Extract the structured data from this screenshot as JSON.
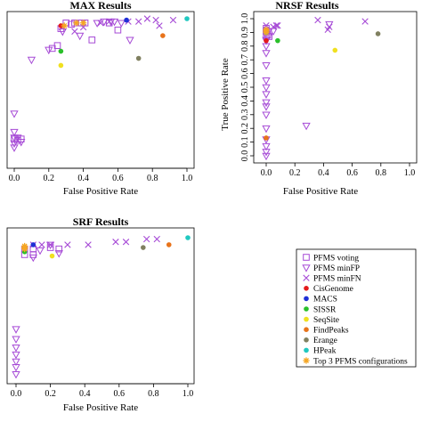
{
  "marker_styles": {
    "PFMS voting": {
      "shape": "square",
      "color": "#a64ad6"
    },
    "PFMS minFP": {
      "shape": "triangle-down",
      "color": "#a64ad6"
    },
    "PFMS minFN": {
      "shape": "x",
      "color": "#a64ad6"
    },
    "CisGenome": {
      "shape": "dot",
      "color": "#e41a1c"
    },
    "MACS": {
      "shape": "dot",
      "color": "#1f2fd6"
    },
    "SISSR": {
      "shape": "dot",
      "color": "#2ac02a"
    },
    "SeqSite": {
      "shape": "dot",
      "color": "#f0e020"
    },
    "FindPeaks": {
      "shape": "dot",
      "color": "#e8731a"
    },
    "Erange": {
      "shape": "dot",
      "color": "#808060"
    },
    "HPeak": {
      "shape": "dot",
      "color": "#20c8c0"
    },
    "Top 3 PFMS configurations": {
      "shape": "asterisk",
      "color": "#f5a623"
    }
  },
  "legend": {
    "items": [
      "PFMS voting",
      "PFMS minFP",
      "PFMS minFN",
      "CisGenome",
      "MACS",
      "SISSR",
      "SeqSite",
      "FindPeaks",
      "Erange",
      "HPeak",
      "Top 3 PFMS configurations"
    ]
  },
  "chart_data": [
    {
      "type": "scatter",
      "title": "MAX Results",
      "xlabel": "False Positive Rate",
      "ylabel": "",
      "xlim": [
        0,
        1
      ],
      "ylim": [
        0,
        1
      ],
      "xticks": [
        "0.0",
        "0.2",
        "0.4",
        "0.6",
        "0.8",
        "1.0"
      ],
      "yticks": [],
      "series": [
        {
          "name": "PFMS voting",
          "points": [
            [
              0.0,
              0.15
            ],
            [
              0.02,
              0.14
            ],
            [
              0.04,
              0.15
            ],
            [
              0.22,
              0.79
            ],
            [
              0.25,
              0.81
            ],
            [
              0.27,
              0.93
            ],
            [
              0.3,
              0.97
            ],
            [
              0.33,
              0.96
            ],
            [
              0.35,
              0.97
            ],
            [
              0.39,
              0.97
            ],
            [
              0.41,
              0.97
            ],
            [
              0.45,
              0.85
            ],
            [
              0.55,
              0.97
            ],
            [
              0.6,
              0.92
            ]
          ]
        },
        {
          "name": "PFMS minFP",
          "points": [
            [
              0.0,
              0.33
            ],
            [
              0.0,
              0.2
            ],
            [
              0.0,
              0.16
            ],
            [
              0.0,
              0.12
            ],
            [
              0.0,
              0.09
            ],
            [
              0.02,
              0.16
            ],
            [
              0.04,
              0.13
            ],
            [
              0.1,
              0.71
            ],
            [
              0.2,
              0.78
            ],
            [
              0.28,
              0.91
            ],
            [
              0.38,
              0.88
            ],
            [
              0.48,
              0.97
            ],
            [
              0.52,
              0.98
            ],
            [
              0.56,
              0.98
            ],
            [
              0.58,
              0.98
            ],
            [
              0.62,
              0.97
            ],
            [
              0.67,
              0.85
            ]
          ]
        },
        {
          "name": "PFMS minFN",
          "points": [
            [
              0.28,
              0.94
            ],
            [
              0.35,
              0.91
            ],
            [
              0.4,
              0.94
            ],
            [
              0.5,
              0.97
            ],
            [
              0.55,
              0.98
            ],
            [
              0.66,
              0.98
            ],
            [
              0.72,
              0.98
            ],
            [
              0.77,
              1.0
            ],
            [
              0.82,
              0.99
            ],
            [
              0.84,
              0.95
            ],
            [
              0.92,
              0.99
            ]
          ]
        },
        {
          "name": "CisGenome",
          "points": [
            [
              0.27,
              0.95
            ]
          ]
        },
        {
          "name": "MACS",
          "points": [
            [
              0.65,
              0.99
            ]
          ]
        },
        {
          "name": "SISSR",
          "points": [
            [
              0.27,
              0.77
            ]
          ]
        },
        {
          "name": "SeqSite",
          "points": [
            [
              0.27,
              0.67
            ]
          ]
        },
        {
          "name": "FindPeaks",
          "points": [
            [
              0.86,
              0.88
            ]
          ]
        },
        {
          "name": "Erange",
          "points": [
            [
              0.72,
              0.72
            ]
          ]
        },
        {
          "name": "HPeak",
          "points": [
            [
              1.0,
              1.0
            ]
          ]
        },
        {
          "name": "Top 3 PFMS configurations",
          "points": [
            [
              0.29,
              0.95
            ],
            [
              0.36,
              0.97
            ],
            [
              0.4,
              0.97
            ]
          ]
        }
      ]
    },
    {
      "type": "scatter",
      "title": "NRSF Results",
      "xlabel": "False Positive Rate",
      "ylabel": "True Positive Rate",
      "xlim": [
        0,
        1
      ],
      "ylim": [
        0,
        1
      ],
      "xticks": [
        "0.0",
        "0.2",
        "0.4",
        "0.6",
        "0.8",
        "1.0"
      ],
      "yticks": [
        "0.0",
        "0.1",
        "0.2",
        "0.3",
        "0.4",
        "0.5",
        "0.6",
        "0.7",
        "0.8",
        "0.9",
        "1.0"
      ],
      "series": [
        {
          "name": "PFMS voting",
          "points": [
            [
              0.0,
              0.93
            ],
            [
              0.0,
              0.91
            ],
            [
              0.0,
              0.9
            ],
            [
              0.01,
              0.88
            ],
            [
              0.02,
              0.87
            ]
          ]
        },
        {
          "name": "PFMS minFP",
          "points": [
            [
              0.0,
              0.0
            ],
            [
              0.0,
              0.03
            ],
            [
              0.0,
              0.07
            ],
            [
              0.0,
              0.12
            ],
            [
              0.0,
              0.2
            ],
            [
              0.0,
              0.3
            ],
            [
              0.0,
              0.36
            ],
            [
              0.0,
              0.39
            ],
            [
              0.0,
              0.45
            ],
            [
              0.0,
              0.5
            ],
            [
              0.0,
              0.55
            ],
            [
              0.0,
              0.66
            ],
            [
              0.0,
              0.75
            ],
            [
              0.0,
              0.8
            ],
            [
              0.0,
              0.84
            ],
            [
              0.0,
              0.85
            ],
            [
              0.28,
              0.22
            ],
            [
              0.44,
              0.96
            ],
            [
              0.05,
              0.91
            ]
          ]
        },
        {
          "name": "PFMS minFN",
          "points": [
            [
              0.0,
              0.95
            ],
            [
              0.0,
              0.92
            ],
            [
              0.02,
              0.9
            ],
            [
              0.05,
              0.94
            ],
            [
              0.07,
              0.95
            ],
            [
              0.08,
              0.95
            ],
            [
              0.36,
              0.99
            ],
            [
              0.43,
              0.92
            ],
            [
              0.44,
              0.94
            ],
            [
              0.69,
              0.98
            ]
          ]
        },
        {
          "name": "CisGenome",
          "points": [
            [
              0.0,
              0.84
            ]
          ]
        },
        {
          "name": "MACS",
          "points": [
            [
              0.0,
              0.9
            ]
          ]
        },
        {
          "name": "SISSR",
          "points": [
            [
              0.08,
              0.84
            ]
          ]
        },
        {
          "name": "SeqSite",
          "points": [
            [
              0.48,
              0.77
            ]
          ]
        },
        {
          "name": "FindPeaks",
          "points": [
            [
              0.0,
              0.13
            ]
          ]
        },
        {
          "name": "Erange",
          "points": [
            [
              0.78,
              0.89
            ]
          ]
        },
        {
          "name": "HPeak",
          "points": [
            [
              0.0,
              0.9
            ]
          ]
        },
        {
          "name": "Top 3 PFMS configurations",
          "points": [
            [
              0.0,
              0.92
            ],
            [
              0.0,
              0.91
            ],
            [
              0.0,
              0.9
            ]
          ]
        }
      ]
    },
    {
      "type": "scatter",
      "title": "SRF Results",
      "xlabel": "False Positive Rate",
      "ylabel": "",
      "xlim": [
        0,
        1
      ],
      "ylim": [
        0,
        1
      ],
      "xticks": [
        "0.0",
        "0.2",
        "0.4",
        "0.6",
        "0.8",
        "1.0"
      ],
      "yticks": [],
      "series": [
        {
          "name": "PFMS voting",
          "points": [
            [
              0.05,
              0.92
            ],
            [
              0.05,
              0.88
            ],
            [
              0.1,
              0.92
            ],
            [
              0.1,
              0.88
            ],
            [
              0.2,
              0.93
            ],
            [
              0.25,
              0.92
            ]
          ]
        },
        {
          "name": "PFMS minFP",
          "points": [
            [
              0.0,
              0.35
            ],
            [
              0.0,
              0.28
            ],
            [
              0.0,
              0.22
            ],
            [
              0.0,
              0.17
            ],
            [
              0.0,
              0.12
            ],
            [
              0.0,
              0.08
            ],
            [
              0.0,
              0.03
            ],
            [
              0.1,
              0.86
            ],
            [
              0.14,
              0.91
            ],
            [
              0.2,
              0.95
            ],
            [
              0.25,
              0.89
            ]
          ]
        },
        {
          "name": "PFMS minFN",
          "points": [
            [
              0.1,
              0.95
            ],
            [
              0.15,
              0.95
            ],
            [
              0.2,
              0.95
            ],
            [
              0.3,
              0.95
            ],
            [
              0.42,
              0.95
            ],
            [
              0.58,
              0.97
            ],
            [
              0.64,
              0.97
            ],
            [
              0.76,
              0.99
            ],
            [
              0.82,
              0.99
            ]
          ]
        },
        {
          "name": "CisGenome",
          "points": [
            [
              0.05,
              0.93
            ]
          ]
        },
        {
          "name": "MACS",
          "points": [
            [
              0.1,
              0.95
            ]
          ]
        },
        {
          "name": "SISSR",
          "points": [
            [
              0.05,
              0.9
            ]
          ]
        },
        {
          "name": "SeqSite",
          "points": [
            [
              0.21,
              0.87
            ]
          ]
        },
        {
          "name": "FindPeaks",
          "points": [
            [
              0.89,
              0.95
            ]
          ]
        },
        {
          "name": "Erange",
          "points": [
            [
              0.74,
              0.93
            ]
          ]
        },
        {
          "name": "HPeak",
          "points": [
            [
              1.0,
              1.0
            ]
          ]
        },
        {
          "name": "Top 3 PFMS configurations",
          "points": [
            [
              0.05,
              0.94
            ],
            [
              0.05,
              0.93
            ],
            [
              0.05,
              0.92
            ]
          ]
        }
      ]
    }
  ]
}
